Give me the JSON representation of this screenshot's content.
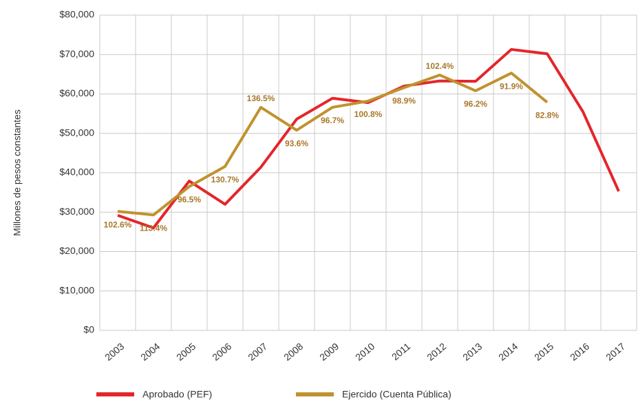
{
  "chart_data": {
    "type": "line",
    "y_label": "Millones de pesos constantes",
    "categories": [
      "2003",
      "2004",
      "2005",
      "2006",
      "2007",
      "2008",
      "2009",
      "2010",
      "2011",
      "2012",
      "2013",
      "2014",
      "2015",
      "2016",
      "2017"
    ],
    "series": [
      {
        "name": "Aprobado (PEF)",
        "color": "#e3262b",
        "values": [
          29200,
          26000,
          37900,
          32000,
          41400,
          53600,
          58900,
          57800,
          62000,
          63300,
          63200,
          71300,
          70200,
          55500,
          35300
        ]
      },
      {
        "name": "Ejercido (Cuenta Pública)",
        "color": "#c0922e",
        "values": [
          30200,
          29300,
          36500,
          41600,
          56600,
          50800,
          56600,
          58200,
          61600,
          64800,
          60800,
          65300,
          57900,
          null,
          null
        ]
      }
    ],
    "annotations": [
      {
        "x": "2003",
        "text": "102.6%"
      },
      {
        "x": "2004",
        "text": "113.4%"
      },
      {
        "x": "2005",
        "text": "96.5%"
      },
      {
        "x": "2006",
        "text": "130.7%"
      },
      {
        "x": "2007",
        "text": "136.5%"
      },
      {
        "x": "2008",
        "text": "93.6%"
      },
      {
        "x": "2009",
        "text": "96.7%"
      },
      {
        "x": "2010",
        "text": "100.8%"
      },
      {
        "x": "2011",
        "text": "98.9%"
      },
      {
        "x": "2012",
        "text": "102.4%"
      },
      {
        "x": "2013",
        "text": "96.2%"
      },
      {
        "x": "2014",
        "text": "91.9%"
      },
      {
        "x": "2015",
        "text": "82.8%"
      }
    ],
    "ylim": [
      0,
      80000
    ],
    "yticks": [
      {
        "value": 0,
        "label": "$0"
      },
      {
        "value": 10000,
        "label": "$10,000"
      },
      {
        "value": 20000,
        "label": "$20,000"
      },
      {
        "value": 30000,
        "label": "$30,000"
      },
      {
        "value": 40000,
        "label": "$40,000"
      },
      {
        "value": 50000,
        "label": "$50,000"
      },
      {
        "value": 60000,
        "label": "$60,000"
      },
      {
        "value": 70000,
        "label": "$70,000"
      },
      {
        "value": 80000,
        "label": "$80,000"
      }
    ],
    "grid": true,
    "legend": "bottom"
  }
}
